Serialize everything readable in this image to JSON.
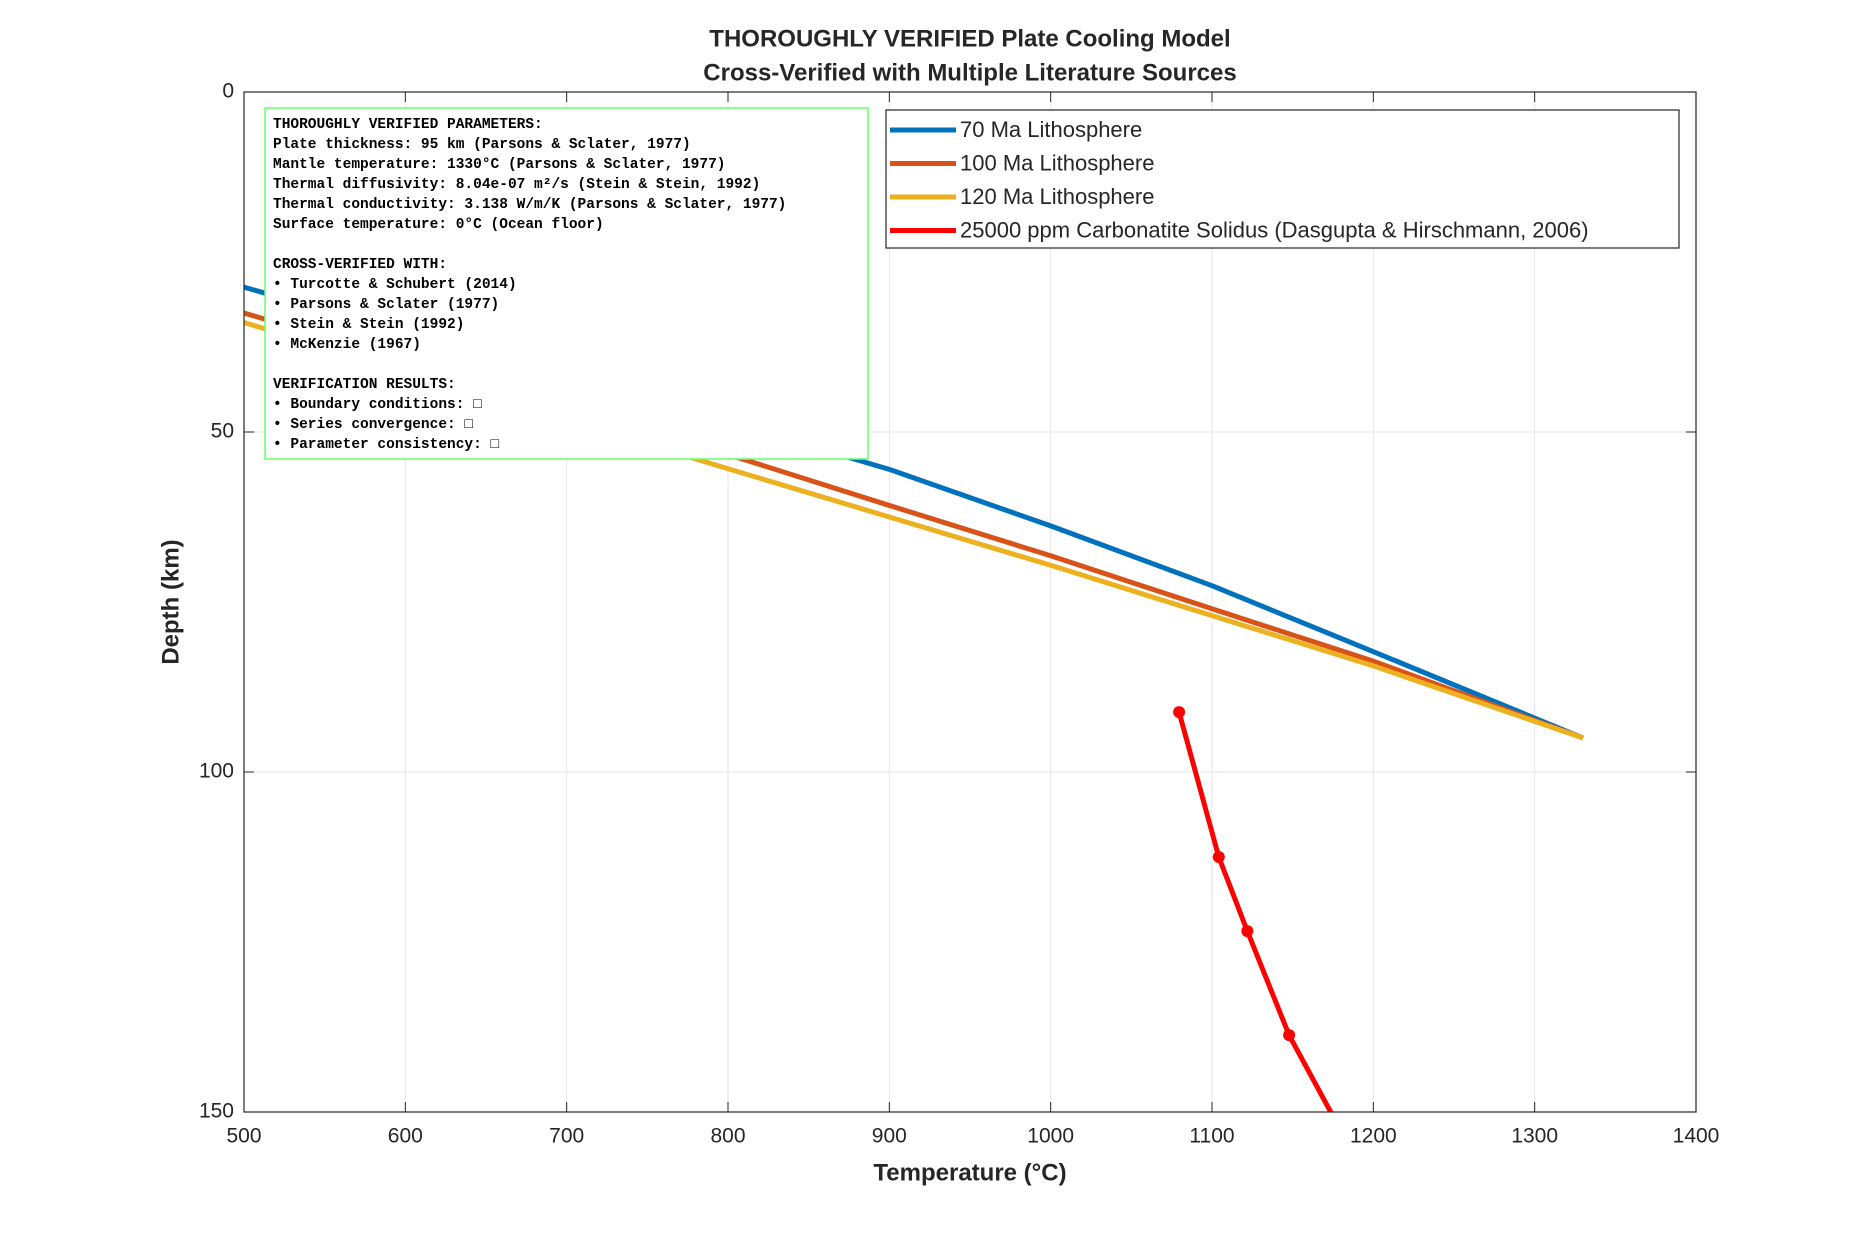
{
  "chart_data": {
    "type": "line",
    "title": "THOROUGHLY VERIFIED Plate Cooling Model",
    "subtitle": "Cross-Verified with Multiple Literature Sources",
    "x_label": "Temperature (°C)",
    "y_label": "Depth (km)",
    "xlim": [
      500,
      1400
    ],
    "ylim": [
      0,
      150
    ],
    "y_reversed": true,
    "xticks": [
      500,
      600,
      700,
      800,
      900,
      1000,
      1100,
      1200,
      1300,
      1400
    ],
    "yticks": [
      0,
      50,
      100,
      150
    ],
    "grid": true,
    "legend_location": "northeast",
    "series": [
      {
        "name": "70 Ma Lithosphere",
        "color": "#0072bd",
        "marker": false,
        "x": [
          500,
          600,
          700,
          800,
          900,
          1000,
          1100,
          1200,
          1330
        ],
        "y": [
          28.7,
          35.5,
          42,
          48.5,
          55.5,
          63.8,
          72.6,
          82.3,
          95
        ]
      },
      {
        "name": "100 Ma Lithosphere",
        "color": "#d95319",
        "marker": false,
        "x": [
          500,
          600,
          700,
          800,
          900,
          1000,
          1100,
          1200,
          1330
        ],
        "y": [
          32.5,
          39.5,
          46.5,
          53.3,
          60.8,
          68.2,
          76,
          83.7,
          95
        ]
      },
      {
        "name": "120 Ma Lithosphere",
        "color": "#edb120",
        "marker": false,
        "x": [
          500,
          600,
          700,
          800,
          900,
          1000,
          1100,
          1200,
          1330
        ],
        "y": [
          33.9,
          41,
          48.2,
          55.4,
          62.5,
          69.6,
          77,
          84.4,
          95
        ]
      },
      {
        "name": "25000 ppm Carbonatite Solidus (Dasgupta & Hirschmann, 2006)",
        "color": "#ff0000",
        "marker": true,
        "x": [
          1079.6,
          1104.2,
          1121.9,
          1147.8,
          1185
        ],
        "y": [
          91.2,
          112.5,
          123.4,
          138.7,
          155
        ]
      }
    ],
    "annotation": [
      [
        "THOROUGHLY VERIFIED PARAMETERS:",
        "Plate thickness: 95 km (Parsons & Sclater, 1977)",
        "Mantle temperature: 1330°C (Parsons & Sclater, 1977)",
        "Thermal diffusivity: 8.04e-07 m²/s (Stein & Stein, 1992)",
        "Thermal conductivity: 3.138 W/m/K (Parsons & Sclater, 1977)",
        "Surface temperature: 0°C (Ocean floor)"
      ],
      [
        "CROSS-VERIFIED WITH:",
        "• Turcotte & Schubert (2014)",
        "• Parsons & Sclater (1977)",
        "• Stein & Stein (1992)",
        "• McKenzie (1967)"
      ],
      [
        "VERIFICATION RESULTS:",
        "• Boundary conditions: □",
        "• Series convergence: □",
        "• Parameter consistency: □"
      ]
    ]
  }
}
